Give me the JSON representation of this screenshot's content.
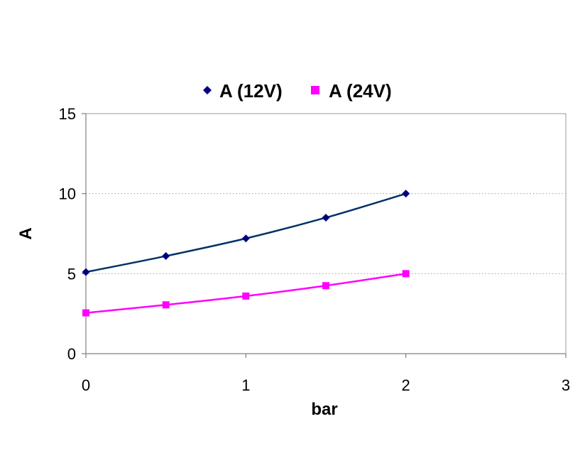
{
  "chart_data": {
    "type": "line",
    "title": "",
    "xlabel": "bar",
    "ylabel": "A",
    "xlim": [
      0,
      3
    ],
    "ylim": [
      0,
      15
    ],
    "x_ticks": [
      0,
      1,
      2,
      3
    ],
    "y_ticks": [
      0,
      5,
      10,
      15
    ],
    "x_tick_labels": [
      "0",
      "1",
      "2",
      "3"
    ],
    "y_tick_labels": [
      "0",
      "5",
      "10",
      "15"
    ],
    "grid": "horizontal dotted",
    "legend_position": "top",
    "series": [
      {
        "name": "A (12V)",
        "marker": "diamond",
        "color": "#000080",
        "line_color": "#003366",
        "smooth": true,
        "x": [
          0,
          0.5,
          1,
          1.5,
          2
        ],
        "y": [
          5.1,
          6.1,
          7.2,
          8.5,
          10.0
        ]
      },
      {
        "name": "A (24V)",
        "marker": "square",
        "color": "#FF00FF",
        "line_color": "#FF00FF",
        "smooth": true,
        "x": [
          0,
          0.5,
          1,
          1.5,
          2
        ],
        "y": [
          2.55,
          3.05,
          3.6,
          4.25,
          5.0
        ]
      }
    ]
  }
}
